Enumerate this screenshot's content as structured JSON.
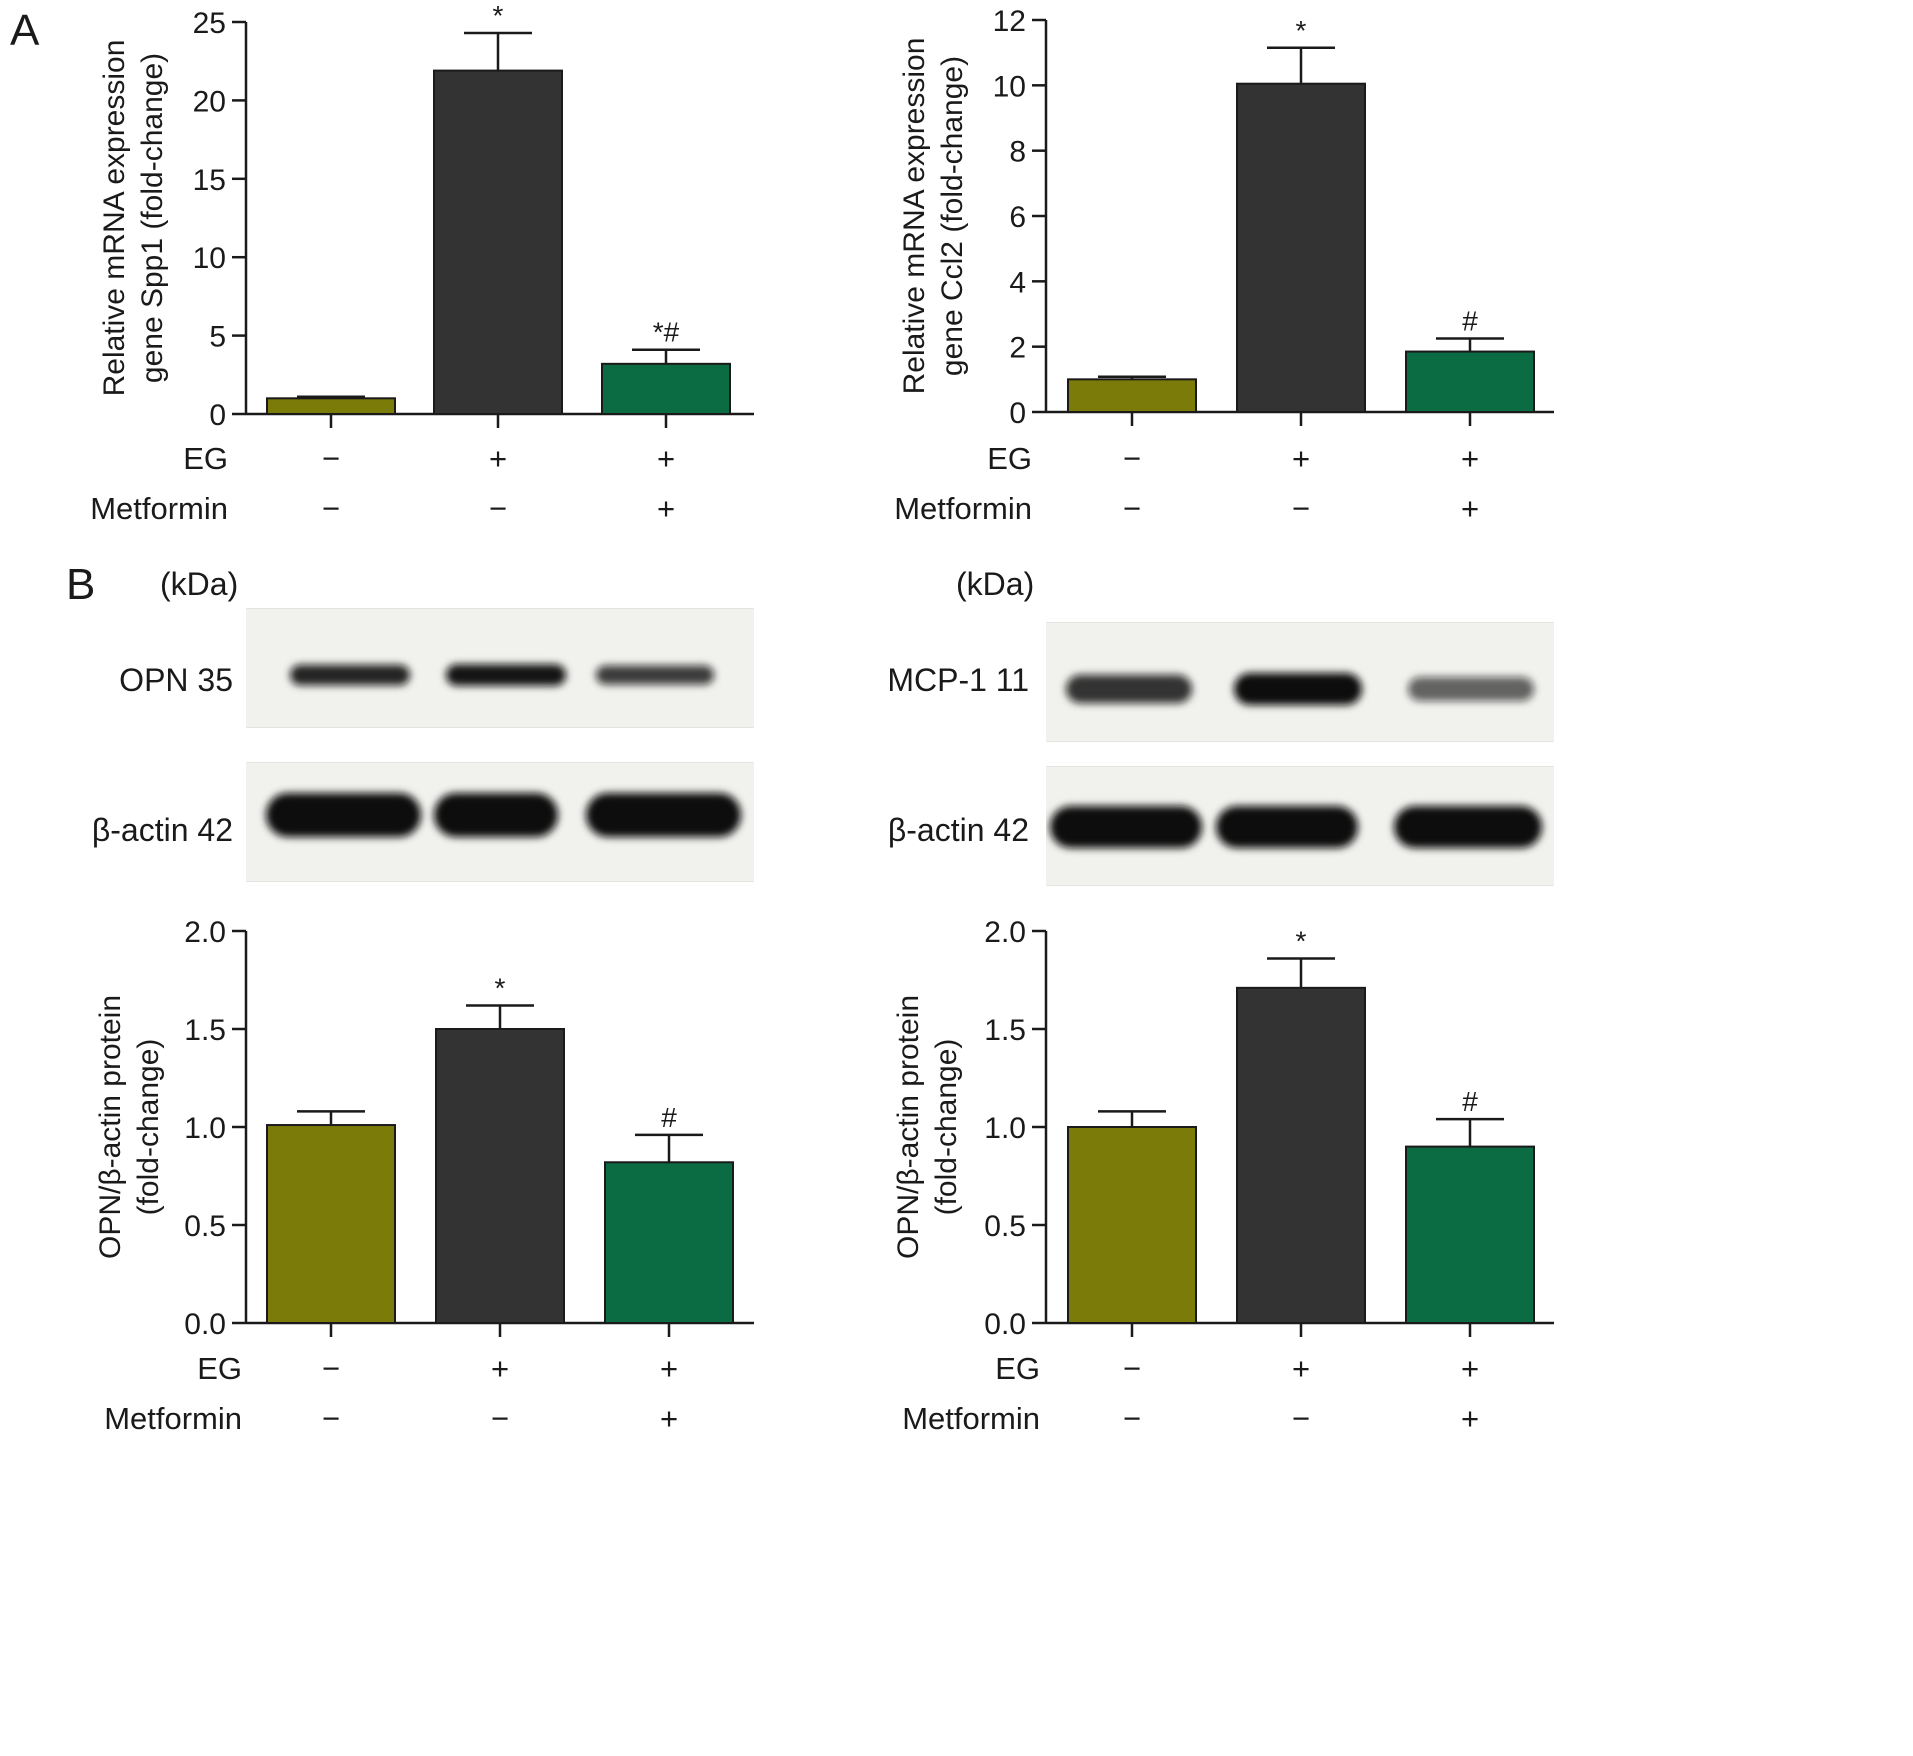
{
  "panel_labels": {
    "a": "A",
    "b": "B"
  },
  "colors": {
    "control": "#7b7b0a",
    "eg": "#333333",
    "eg_metformin": "#0b6b43",
    "axis": "#1a1a1a"
  },
  "blots": {
    "kda_label": "(kDa)",
    "opn": {
      "target_label": "OPN 35",
      "loading_label": "β-actin 42",
      "band_intensity": [
        0.85,
        0.95,
        0.7
      ],
      "loading_intensity": [
        1.0,
        1.0,
        1.0
      ]
    },
    "mcp1": {
      "target_label": "MCP-1 11",
      "loading_label": "β-actin 42",
      "band_intensity": [
        0.75,
        1.0,
        0.45
      ],
      "loading_intensity": [
        1.0,
        1.0,
        1.0
      ]
    }
  },
  "chart_data": [
    {
      "type": "bar",
      "panel": "A",
      "ylabel": [
        "Relative mRNA expression",
        "gene Spp1 (fold-change)"
      ],
      "ylim": [
        0,
        25
      ],
      "yticks": [
        0,
        5,
        10,
        15,
        20,
        25
      ],
      "tick_labels": [
        "0",
        "5",
        "10",
        "15",
        "20",
        "25"
      ],
      "values": [
        1.0,
        21.9,
        3.2
      ],
      "errors": [
        0.1,
        2.4,
        0.9
      ],
      "annotations": [
        "",
        "*",
        "*#"
      ],
      "conditions": {
        "rows": [
          "EG",
          "Metformin"
        ],
        "EG": [
          "−",
          "+",
          "+"
        ],
        "Metformin": [
          "−",
          "−",
          "+"
        ]
      }
    },
    {
      "type": "bar",
      "panel": "A",
      "ylabel": [
        "Relative mRNA expression",
        "gene Ccl2 (fold-change)"
      ],
      "ylim": [
        0,
        12
      ],
      "yticks": [
        0,
        2,
        4,
        6,
        8,
        10,
        12
      ],
      "tick_labels": [
        "0",
        "2",
        "4",
        "6",
        "8",
        "10",
        "12"
      ],
      "values": [
        1.0,
        10.05,
        1.85
      ],
      "errors": [
        0.08,
        1.1,
        0.4
      ],
      "annotations": [
        "",
        "*",
        "#"
      ],
      "conditions": {
        "rows": [
          "EG",
          "Metformin"
        ],
        "EG": [
          "−",
          "+",
          "+"
        ],
        "Metformin": [
          "−",
          "−",
          "+"
        ]
      }
    },
    {
      "type": "bar",
      "panel": "B",
      "ylabel": [
        "OPN/β-actin protein",
        "(fold-change)"
      ],
      "ylim": [
        0,
        2.0
      ],
      "yticks": [
        0,
        0.5,
        1.0,
        1.5,
        2.0
      ],
      "tick_labels": [
        "0.0",
        "0.5",
        "1.0",
        "1.5",
        "2.0"
      ],
      "values": [
        1.01,
        1.5,
        0.82
      ],
      "errors": [
        0.07,
        0.12,
        0.14
      ],
      "annotations": [
        "",
        "*",
        "#"
      ],
      "conditions": {
        "rows": [
          "EG",
          "Metformin"
        ],
        "EG": [
          "−",
          "+",
          "+"
        ],
        "Metformin": [
          "−",
          "−",
          "+"
        ]
      }
    },
    {
      "type": "bar",
      "panel": "B",
      "ylabel": [
        "OPN/β-actin protein",
        "(fold-change)"
      ],
      "ylim": [
        0,
        2.0
      ],
      "yticks": [
        0,
        0.5,
        1.0,
        1.5,
        2.0
      ],
      "tick_labels": [
        "0.0",
        "0.5",
        "1.0",
        "1.5",
        "2.0"
      ],
      "values": [
        1.0,
        1.71,
        0.9
      ],
      "errors": [
        0.08,
        0.15,
        0.14
      ],
      "annotations": [
        "",
        "*",
        "#"
      ],
      "conditions": {
        "rows": [
          "EG",
          "Metformin"
        ],
        "EG": [
          "−",
          "+",
          "+"
        ],
        "Metformin": [
          "−",
          "−",
          "+"
        ]
      }
    }
  ]
}
